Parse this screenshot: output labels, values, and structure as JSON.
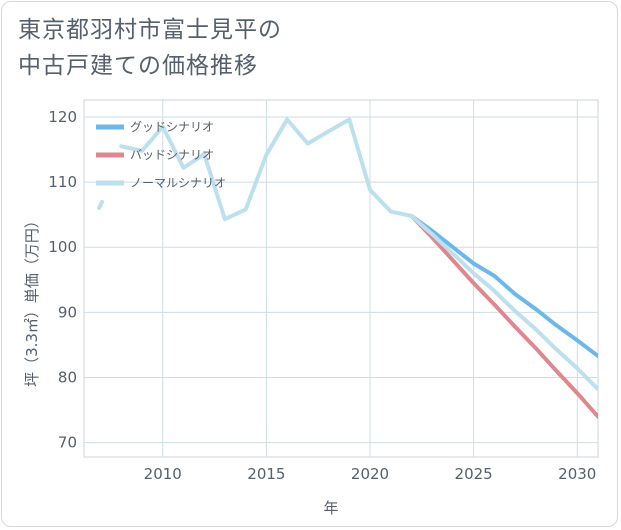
{
  "header": {
    "title_line1": "東京都羽村市富士見平の",
    "title_line2": "中古戸建ての価格推移"
  },
  "chart_data": {
    "type": "line",
    "xlabel": "年",
    "ylabel": "坪（3.3㎡）単価（万円）",
    "xlim": [
      2006.2,
      2031
    ],
    "ylim": [
      67.8,
      122.6
    ],
    "xticks": [
      2010,
      2015,
      2020,
      2025,
      2030
    ],
    "yticks": [
      70,
      80,
      90,
      100,
      110,
      120
    ],
    "grid": true,
    "legend_position": "top-left",
    "series": [
      {
        "name": "グッドシナリオ",
        "color": "#6cb8ea",
        "x": [
          2022,
          2023,
          2024,
          2025,
          2026,
          2027,
          2028,
          2029,
          2030,
          2031
        ],
        "y": [
          104.8,
          102.5,
          100.0,
          97.5,
          95.6,
          92.8,
          90.5,
          88.0,
          85.7,
          83.3
        ]
      },
      {
        "name": "バッドシナリオ",
        "color": "#e0878e",
        "x": [
          2022,
          2023,
          2024,
          2025,
          2026,
          2027,
          2028,
          2029,
          2030,
          2031
        ],
        "y": [
          104.8,
          101.5,
          98.0,
          94.5,
          91.2,
          87.8,
          84.5,
          81.0,
          77.6,
          74.0
        ]
      },
      {
        "name": "ノーマルシナリオ",
        "color": "#bde0ef",
        "x": [
          2007,
          2008,
          2009,
          2010,
          2011,
          2012,
          2013,
          2014,
          2015,
          2016,
          2017,
          2018,
          2019,
          2020,
          2021,
          2022,
          2023,
          2024,
          2025,
          2026,
          2027,
          2028,
          2029,
          2030,
          2031
        ],
        "y": [
          106.5,
          115.5,
          114.8,
          118.5,
          112.2,
          114.3,
          104.3,
          105.8,
          114.2,
          119.6,
          115.9,
          117.8,
          119.6,
          108.8,
          105.5,
          104.8,
          102.0,
          99.0,
          96.0,
          93.3,
          90.2,
          87.4,
          84.3,
          81.4,
          78.2
        ]
      }
    ]
  }
}
